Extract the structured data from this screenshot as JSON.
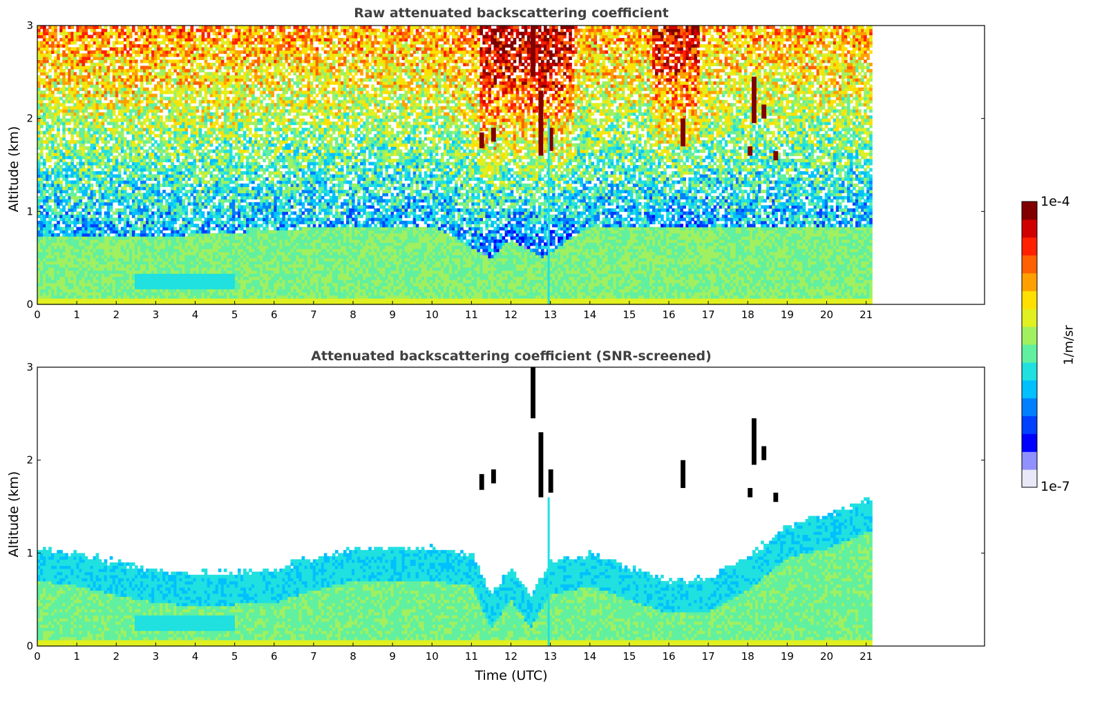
{
  "chart_data": [
    {
      "type": "heatmap",
      "title": "Raw attenuated backscattering coefficient",
      "ylabel": "Altitude (km)",
      "xlabel": "",
      "xlim": [
        0,
        24
      ],
      "ylim": [
        0,
        3
      ],
      "data_extent_x": [
        0,
        21.15
      ],
      "xticks": [
        "0",
        "1",
        "2",
        "3",
        "4",
        "5",
        "6",
        "7",
        "8",
        "9",
        "10",
        "11",
        "12",
        "13",
        "14",
        "15",
        "16",
        "17",
        "18",
        "19",
        "20",
        "21"
      ],
      "yticks": [
        "0",
        "1",
        "2",
        "3"
      ],
      "description_values": {
        "boundary_layer_top_km": [
          [
            0,
            0.75
          ],
          [
            2,
            0.72
          ],
          [
            4,
            0.75
          ],
          [
            6,
            0.8
          ],
          [
            8,
            0.85
          ],
          [
            10,
            0.85
          ],
          [
            11.5,
            0.5
          ],
          [
            12,
            0.7
          ],
          [
            12.8,
            0.5
          ],
          [
            14,
            0.85
          ],
          [
            16,
            0.85
          ],
          [
            18,
            0.85
          ],
          [
            20,
            0.85
          ],
          [
            21.15,
            0.85
          ]
        ],
        "cloud_patches": [
          {
            "t": 11.2,
            "z0": 1.68,
            "z1": 1.85,
            "log10": -4.1
          },
          {
            "t": 11.5,
            "z0": 1.75,
            "z1": 1.9,
            "log10": -4.0
          },
          {
            "t": 12.5,
            "z0": 2.45,
            "z1": 3.0,
            "log10": -4.0
          },
          {
            "t": 12.7,
            "z0": 1.6,
            "z1": 2.3,
            "log10": -4.0
          },
          {
            "t": 12.95,
            "z0": 1.65,
            "z1": 1.9,
            "log10": -4.1
          },
          {
            "t": 16.3,
            "z0": 1.7,
            "z1": 2.0,
            "log10": -4.0
          },
          {
            "t": 18.0,
            "z0": 1.6,
            "z1": 1.7,
            "log10": -4.0
          },
          {
            "t": 18.1,
            "z0": 1.95,
            "z1": 2.45,
            "log10": -4.0
          },
          {
            "t": 18.35,
            "z0": 2.0,
            "z1": 2.15,
            "log10": -4.0
          },
          {
            "t": 18.65,
            "z0": 1.55,
            "z1": 1.65,
            "log10": -4.1
          }
        ]
      }
    },
    {
      "type": "heatmap",
      "title": "Attenuated backscattering coefficient (SNR-screened)",
      "ylabel": "Altitude (km)",
      "xlabel": "Time (UTC)",
      "xlim": [
        0,
        24
      ],
      "ylim": [
        0,
        3
      ],
      "data_extent_x": [
        0,
        21.15
      ],
      "xticks": [
        "0",
        "1",
        "2",
        "3",
        "4",
        "5",
        "6",
        "7",
        "8",
        "9",
        "10",
        "11",
        "12",
        "13",
        "14",
        "15",
        "16",
        "17",
        "18",
        "19",
        "20",
        "21"
      ],
      "yticks": [
        "0",
        "1",
        "2",
        "3"
      ],
      "description_values": {
        "screened_top_km": [
          [
            0,
            1.05
          ],
          [
            1,
            1.0
          ],
          [
            2,
            0.9
          ],
          [
            3,
            0.82
          ],
          [
            4,
            0.78
          ],
          [
            5,
            0.8
          ],
          [
            6,
            0.82
          ],
          [
            7,
            0.95
          ],
          [
            8,
            1.05
          ],
          [
            9,
            1.05
          ],
          [
            10,
            1.05
          ],
          [
            11,
            1.0
          ],
          [
            11.5,
            0.55
          ],
          [
            12,
            0.85
          ],
          [
            12.5,
            0.55
          ],
          [
            13,
            0.9
          ],
          [
            14,
            1.0
          ],
          [
            15,
            0.85
          ],
          [
            16,
            0.7
          ],
          [
            17,
            0.72
          ],
          [
            18,
            0.95
          ],
          [
            19,
            1.3
          ],
          [
            20,
            1.4
          ],
          [
            21.15,
            1.6
          ]
        ]
      }
    }
  ],
  "colorbar": {
    "label": "1/m/sr",
    "max_label": "1e-4",
    "min_label": "1e-7",
    "log10_range": [
      -7,
      -4
    ],
    "colormap": [
      "#e8e8f8",
      "#9090ff",
      "#0000ff",
      "#0040ff",
      "#0080ff",
      "#00c0ff",
      "#20e0e0",
      "#60f0a0",
      "#a0f060",
      "#e0f020",
      "#ffe000",
      "#ffa000",
      "#ff6000",
      "#ff2000",
      "#d00000",
      "#800000"
    ]
  }
}
